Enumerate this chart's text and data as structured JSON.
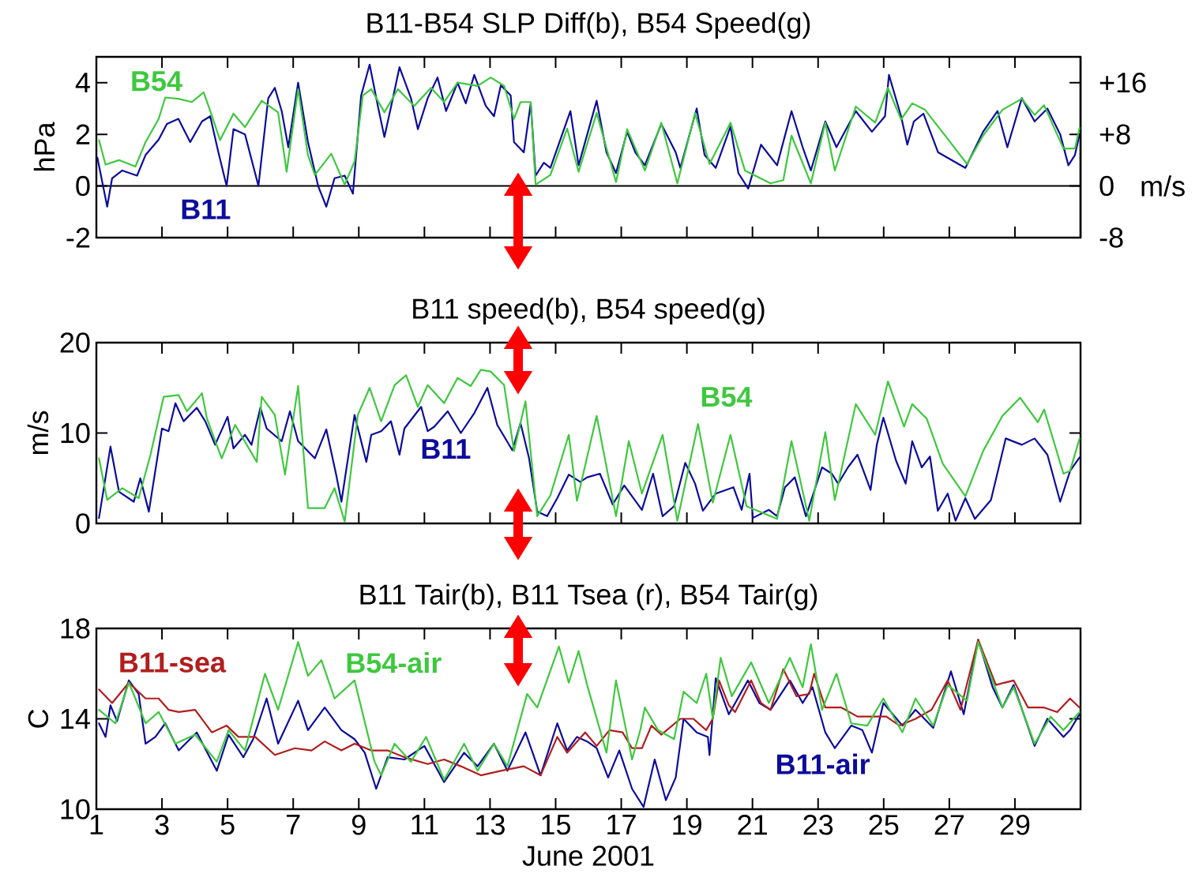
{
  "chart_data": [
    {
      "type": "line",
      "title": "B11-B54 SLP Diff(b), B54 Speed(g)",
      "ylabel": "hPa",
      "y2label": "m/s",
      "xlim": [
        1,
        31
      ],
      "xticks": [
        1,
        3,
        5,
        7,
        9,
        11,
        13,
        15,
        17,
        19,
        21,
        23,
        25,
        27,
        29
      ],
      "ylim": [
        -2,
        5
      ],
      "yticks": [
        -2,
        0,
        2,
        4
      ],
      "y2lim": [
        -8,
        20
      ],
      "y2ticks": [
        {
          "value": -8,
          "label": "-8"
        },
        {
          "value": 0,
          "label": "0"
        },
        {
          "value": 8,
          "label": "+8"
        },
        {
          "value": 16,
          "label": "+16"
        }
      ],
      "tick_labels": "y",
      "ref_lines": [
        {
          "axis": "y",
          "value": 0,
          "color": "#000000"
        }
      ],
      "series": [
        {
          "name": "B11",
          "color": "#0c0c9c",
          "x": [
            1.03,
            1.33,
            1.48,
            1.79,
            2.24,
            2.5,
            2.9,
            3.15,
            3.5,
            3.86,
            4.22,
            4.47,
            4.72,
            4.97,
            5.18,
            5.53,
            5.94,
            6.24,
            6.44,
            6.65,
            6.85,
            7.15,
            7.45,
            7.76,
            8.01,
            8.26,
            8.57,
            8.82,
            9.07,
            9.33,
            9.58,
            9.78,
            10.04,
            10.24,
            10.59,
            10.8,
            11.1,
            11.4,
            11.66,
            12.01,
            12.26,
            12.52,
            12.87,
            13.12,
            13.33,
            13.63,
            13.73,
            14.03,
            14.24,
            14.39,
            14.64,
            14.84,
            15.45,
            15.7,
            16.25,
            16.55,
            16.84,
            17.18,
            17.43,
            17.72,
            18.22,
            18.66,
            18.8,
            19.3,
            19.54,
            19.88,
            20.33,
            20.57,
            20.87,
            21.26,
            21.75,
            22.19,
            22.53,
            22.78,
            23.22,
            23.56,
            24.15,
            24.64,
            25.04,
            25.16,
            25.53,
            25.72,
            25.92,
            26.21,
            26.66,
            27.49,
            28.03,
            28.47,
            28.77,
            29.21,
            29.6,
            29.99,
            30.38,
            30.63,
            30.83,
            30.97
          ],
          "values": [
            1.1,
            -0.8,
            0.3,
            0.6,
            0.4,
            1.2,
            1.8,
            2.4,
            2.6,
            1.7,
            2.5,
            2.7,
            1.3,
            0.0,
            2.2,
            2.0,
            0.0,
            3.4,
            3.8,
            2.9,
            1.5,
            4.0,
            1.7,
            0.0,
            -0.8,
            0.3,
            0.4,
            -0.3,
            3.5,
            4.7,
            3.1,
            1.9,
            3.4,
            4.6,
            3.4,
            2.2,
            3.4,
            4.2,
            2.9,
            4.0,
            3.2,
            4.3,
            3.1,
            2.7,
            3.9,
            3.5,
            1.7,
            1.3,
            3.2,
            0.4,
            0.9,
            0.7,
            2.9,
            0.8,
            3.3,
            1.3,
            0.5,
            2.1,
            1.3,
            0.8,
            2.4,
            1.3,
            0.7,
            3.0,
            1.2,
            0.7,
            2.3,
            0.5,
            -0.1,
            1.6,
            0.8,
            2.9,
            1.5,
            0.6,
            2.5,
            1.5,
            2.9,
            2.1,
            2.7,
            4.3,
            2.7,
            1.6,
            2.5,
            2.8,
            1.3,
            0.7,
            2.1,
            2.9,
            1.5,
            3.4,
            2.5,
            3.0,
            2.0,
            0.8,
            1.2,
            2.0
          ]
        },
        {
          "name": "B54",
          "color": "#3ec83e",
          "axis": "y2",
          "x": [
            1.08,
            1.28,
            1.69,
            2.19,
            2.5,
            2.9,
            3.1,
            3.5,
            3.91,
            4.27,
            4.52,
            4.77,
            5.18,
            5.53,
            6.04,
            6.54,
            6.8,
            7.15,
            7.45,
            7.66,
            8.16,
            8.57,
            8.87,
            9.12,
            9.38,
            9.78,
            10.19,
            10.69,
            11.2,
            11.6,
            12.01,
            12.62,
            13.02,
            13.43,
            13.73,
            13.93,
            14.24,
            14.39,
            14.84,
            15.35,
            15.7,
            16.25,
            16.84,
            17.18,
            17.72,
            18.22,
            18.71,
            19.25,
            19.69,
            20.33,
            20.77,
            21.55,
            21.94,
            22.19,
            22.78,
            23.22,
            23.51,
            24.15,
            24.74,
            25.13,
            25.53,
            25.87,
            26.26,
            26.95,
            27.54,
            28.03,
            28.62,
            29.21,
            29.6,
            29.89,
            30.48,
            30.83,
            30.97
          ],
          "values": [
            7.1,
            3.3,
            4.0,
            3.0,
            6.8,
            10.4,
            13.7,
            13.5,
            13.0,
            14.5,
            10.9,
            7.1,
            11.2,
            9.1,
            13.2,
            11.4,
            2.2,
            15.0,
            4.8,
            1.7,
            5.0,
            0.2,
            3.8,
            14.0,
            15.0,
            11.4,
            15.0,
            12.4,
            15.2,
            13.0,
            16.0,
            15.5,
            16.8,
            15.5,
            10.4,
            13.0,
            13.0,
            0.2,
            1.7,
            8.9,
            2.2,
            11.3,
            0.6,
            8.8,
            2.4,
            9.8,
            0.4,
            11.3,
            3.4,
            9.8,
            2.4,
            0.4,
            0.9,
            7.8,
            0.4,
            9.8,
            2.4,
            12.3,
            9.8,
            15.2,
            10.3,
            12.8,
            11.8,
            7.3,
            3.4,
            7.8,
            11.8,
            13.5,
            11.0,
            12.5,
            5.8,
            5.8,
            9.0
          ]
        }
      ]
    },
    {
      "type": "line",
      "title": "B11 speed(b), B54 speed(g)",
      "ylabel": "m/s",
      "xlim": [
        1,
        31
      ],
      "xticks": [
        1,
        3,
        5,
        7,
        9,
        11,
        13,
        15,
        17,
        19,
        21,
        23,
        25,
        27,
        29
      ],
      "ylim": [
        0,
        20
      ],
      "yticks": [
        0,
        10,
        20
      ],
      "tick_labels": "y",
      "series": [
        {
          "name": "B11",
          "color": "#0c0c9c",
          "x": [
            1.08,
            1.43,
            1.69,
            2.14,
            2.34,
            2.6,
            3.0,
            3.2,
            3.41,
            3.66,
            4.06,
            4.32,
            4.62,
            5.0,
            5.18,
            5.53,
            5.73,
            6.0,
            6.19,
            6.65,
            6.9,
            7.15,
            7.66,
            8.01,
            8.31,
            8.47,
            8.87,
            9.23,
            9.38,
            9.68,
            9.98,
            10.24,
            10.39,
            10.9,
            11.1,
            11.3,
            11.71,
            12.11,
            12.52,
            12.92,
            13.22,
            13.68,
            13.93,
            14.19,
            14.44,
            14.74,
            15.05,
            15.4,
            15.75,
            15.96,
            16.35,
            16.74,
            17.09,
            17.63,
            17.97,
            18.26,
            18.61,
            18.95,
            19.25,
            19.49,
            19.88,
            20.42,
            20.67,
            20.91,
            21.01,
            21.5,
            21.75,
            21.99,
            22.29,
            22.63,
            23.12,
            23.42,
            23.61,
            23.91,
            24.2,
            24.6,
            24.79,
            24.99,
            25.38,
            25.67,
            25.87,
            26.16,
            26.41,
            26.65,
            26.95,
            27.19,
            27.49,
            27.78,
            28.27,
            28.72,
            29.21,
            29.6,
            29.99,
            30.38,
            30.68,
            30.97
          ],
          "values": [
            0.6,
            8.5,
            3.5,
            2.4,
            5.0,
            1.3,
            10.5,
            10.2,
            13.3,
            11.3,
            12.8,
            11.3,
            8.7,
            11.8,
            8.3,
            9.8,
            8.7,
            12.8,
            10.5,
            9.1,
            12.4,
            9.1,
            7.2,
            10.4,
            5.4,
            2.4,
            12.0,
            6.8,
            9.8,
            10.2,
            11.3,
            7.6,
            10.5,
            12.9,
            10.2,
            10.7,
            12.4,
            10.0,
            12.2,
            15.0,
            10.9,
            8.1,
            11.1,
            7.2,
            1.3,
            0.8,
            2.8,
            5.4,
            4.6,
            5.1,
            5.5,
            2.1,
            4.2,
            1.5,
            5.5,
            0.8,
            1.9,
            6.7,
            4.4,
            1.4,
            3.3,
            4.0,
            1.5,
            5.5,
            0.6,
            1.5,
            0.8,
            4.0,
            5.1,
            0.8,
            6.2,
            5.5,
            4.4,
            6.2,
            7.6,
            3.7,
            8.7,
            11.7,
            6.9,
            4.4,
            9.1,
            6.2,
            7.4,
            1.4,
            3.3,
            0.3,
            2.8,
            0.5,
            2.6,
            9.4,
            8.7,
            9.4,
            7.6,
            2.4,
            5.8,
            7.3
          ]
        },
        {
          "name": "B54",
          "color": "#3ec83e",
          "x": [
            1.08,
            1.33,
            1.79,
            2.29,
            2.65,
            3.05,
            3.51,
            3.76,
            4.22,
            4.37,
            4.82,
            5.23,
            5.89,
            6.04,
            6.44,
            6.75,
            7.15,
            7.45,
            7.96,
            8.26,
            8.57,
            8.97,
            9.33,
            9.68,
            10.09,
            10.44,
            10.8,
            11.1,
            11.6,
            12.01,
            12.41,
            12.72,
            13.02,
            13.43,
            13.73,
            14.08,
            14.44,
            14.84,
            15.4,
            15.65,
            16.25,
            16.84,
            17.23,
            17.63,
            18.26,
            18.71,
            19.34,
            19.79,
            20.33,
            20.82,
            21.75,
            22.19,
            22.73,
            23.22,
            23.51,
            24.15,
            24.74,
            25.13,
            25.62,
            25.87,
            26.31,
            26.8,
            27.49,
            28.03,
            28.62,
            29.16,
            29.7,
            29.89,
            30.48,
            30.68,
            30.97
          ],
          "values": [
            7.2,
            2.6,
            3.9,
            2.8,
            7.6,
            14.0,
            14.2,
            12.4,
            14.4,
            11.6,
            7.2,
            10.9,
            6.8,
            14.0,
            12.0,
            5.4,
            15.2,
            1.7,
            1.7,
            3.9,
            0.2,
            12.0,
            15.0,
            11.3,
            15.3,
            16.4,
            12.9,
            15.3,
            13.3,
            16.1,
            15.2,
            17.0,
            16.8,
            15.3,
            8.0,
            13.5,
            0.8,
            3.1,
            9.8,
            2.5,
            11.9,
            0.8,
            9.1,
            3.3,
            9.8,
            0.3,
            11.0,
            2.3,
            9.8,
            1.9,
            0.5,
            9.1,
            0.3,
            10.1,
            2.6,
            13.2,
            9.8,
            15.7,
            10.7,
            13.2,
            11.6,
            6.6,
            3.0,
            8.0,
            11.9,
            13.9,
            11.2,
            12.6,
            5.5,
            5.8,
            9.4
          ]
        }
      ]
    },
    {
      "type": "line",
      "title": "B11 Tair(b), B11 Tsea (r), B54 Tair(g)",
      "xlabel": "June 2001",
      "ylabel": "C",
      "xlim": [
        1,
        31
      ],
      "xticks": [
        1,
        3,
        5,
        7,
        9,
        11,
        13,
        15,
        17,
        19,
        21,
        23,
        25,
        27,
        29
      ],
      "ylim": [
        10,
        18
      ],
      "yticks": [
        10,
        14,
        18
      ],
      "series": [
        {
          "name": "B11-air",
          "color": "#0c0c9c",
          "x": [
            1.08,
            1.28,
            1.43,
            1.63,
            1.99,
            2.29,
            2.5,
            2.8,
            3.1,
            3.51,
            4.06,
            4.67,
            5.03,
            5.48,
            5.78,
            6.19,
            6.54,
            7.15,
            7.45,
            7.96,
            8.47,
            8.87,
            9.18,
            9.53,
            9.88,
            10.39,
            11.0,
            11.6,
            12.21,
            12.62,
            13.12,
            13.53,
            14.08,
            14.54,
            15.05,
            15.35,
            15.65,
            15.96,
            16.25,
            16.6,
            16.94,
            17.33,
            17.68,
            18.02,
            18.36,
            18.66,
            18.9,
            19.3,
            19.64,
            19.69,
            19.88,
            20.28,
            20.86,
            21.21,
            21.55,
            22.14,
            22.53,
            22.83,
            23.22,
            23.51,
            24.01,
            24.35,
            24.64,
            24.99,
            25.57,
            25.97,
            26.51,
            27.05,
            27.44,
            27.88,
            28.32,
            28.62,
            28.96,
            29.6,
            29.99,
            30.48,
            30.68,
            30.97
          ],
          "values": [
            13.8,
            13.2,
            14.6,
            13.9,
            15.7,
            15.1,
            12.9,
            13.2,
            13.8,
            12.6,
            13.4,
            11.7,
            13.3,
            12.3,
            13.1,
            14.9,
            12.9,
            14.8,
            13.5,
            14.5,
            13.5,
            13.1,
            12.5,
            10.9,
            12.3,
            12.2,
            12.8,
            11.2,
            12.5,
            11.9,
            12.9,
            11.7,
            13.4,
            11.5,
            13.8,
            12.6,
            13.2,
            13.0,
            12.7,
            11.4,
            12.6,
            10.9,
            10.1,
            12.2,
            10.4,
            11.4,
            14.0,
            13.4,
            13.2,
            12.4,
            15.8,
            14.2,
            15.7,
            14.7,
            14.4,
            15.7,
            14.7,
            15.4,
            13.4,
            12.7,
            13.7,
            13.5,
            12.5,
            14.7,
            13.7,
            14.4,
            13.6,
            16.1,
            14.2,
            17.5,
            15.4,
            14.5,
            15.5,
            12.8,
            14.0,
            13.2,
            13.5,
            14.2
          ]
        },
        {
          "name": "B11-sea",
          "color": "#b01e1e",
          "x": [
            1.08,
            1.48,
            1.99,
            2.5,
            2.9,
            3.2,
            3.51,
            4.01,
            4.52,
            4.97,
            5.33,
            5.84,
            6.44,
            7.05,
            7.56,
            7.96,
            8.47,
            8.87,
            9.38,
            9.88,
            10.39,
            11.1,
            11.6,
            12.11,
            12.72,
            13.33,
            14.03,
            14.54,
            15.05,
            15.35,
            15.9,
            16.25,
            16.64,
            17.04,
            17.33,
            17.63,
            17.92,
            18.22,
            18.8,
            19.2,
            19.59,
            19.79,
            19.98,
            20.28,
            20.47,
            20.96,
            21.26,
            21.55,
            21.94,
            22.34,
            22.73,
            22.88,
            23.22,
            23.71,
            24.2,
            24.69,
            25.08,
            25.48,
            25.97,
            26.46,
            26.95,
            27.34,
            27.88,
            28.42,
            28.96,
            29.4,
            29.89,
            30.29,
            30.68,
            30.97
          ],
          "values": [
            15.3,
            14.7,
            15.6,
            14.9,
            14.9,
            14.4,
            14.3,
            14.4,
            13.4,
            13.7,
            13.2,
            13.2,
            12.4,
            12.7,
            12.6,
            13.0,
            12.6,
            12.9,
            12.6,
            12.6,
            12.3,
            12.0,
            12.2,
            11.9,
            11.5,
            11.7,
            11.9,
            11.5,
            13.2,
            12.5,
            13.4,
            12.8,
            13.5,
            13.4,
            12.7,
            12.7,
            13.7,
            13.3,
            14.0,
            14.0,
            13.5,
            14.0,
            15.7,
            14.6,
            14.3,
            15.7,
            14.7,
            14.4,
            16.2,
            15.0,
            15.1,
            16.0,
            14.5,
            14.5,
            14.1,
            14.1,
            14.1,
            13.7,
            14.0,
            14.4,
            15.7,
            14.4,
            17.5,
            15.5,
            15.7,
            14.5,
            14.5,
            14.3,
            14.9,
            14.5
          ]
        },
        {
          "name": "B54-air",
          "color": "#3ec83e",
          "x": [
            1.08,
            1.58,
            1.99,
            2.5,
            2.9,
            3.41,
            4.01,
            4.67,
            5.03,
            5.53,
            6.14,
            6.54,
            7.15,
            7.45,
            7.86,
            8.26,
            8.87,
            9.48,
            9.68,
            10.09,
            10.59,
            11.05,
            11.6,
            12.21,
            12.62,
            13.12,
            13.53,
            14.13,
            14.44,
            15.1,
            15.4,
            15.7,
            15.96,
            16.55,
            16.84,
            17.33,
            17.58,
            17.72,
            18.12,
            18.61,
            18.9,
            19.3,
            19.59,
            19.79,
            20.03,
            20.37,
            20.96,
            21.5,
            22.14,
            22.53,
            22.78,
            23.12,
            23.56,
            24.01,
            24.5,
            24.99,
            25.57,
            25.97,
            26.51,
            26.95,
            27.54,
            27.88,
            28.62,
            28.96,
            29.6,
            30.09,
            30.48,
            30.97
          ],
          "values": [
            14.4,
            13.8,
            15.6,
            13.8,
            14.3,
            12.9,
            13.3,
            12.1,
            13.5,
            12.6,
            16.0,
            14.4,
            17.4,
            15.9,
            16.6,
            14.9,
            15.7,
            12.1,
            11.5,
            12.9,
            12.1,
            13.2,
            11.3,
            12.9,
            11.7,
            12.9,
            11.9,
            15.1,
            14.5,
            17.2,
            15.6,
            17.0,
            15.5,
            12.5,
            15.7,
            12.2,
            13.5,
            14.5,
            13.5,
            13.1,
            15.2,
            14.7,
            16.0,
            14.0,
            16.7,
            15.0,
            16.5,
            14.7,
            16.7,
            15.4,
            17.3,
            14.4,
            16.0,
            13.8,
            13.7,
            14.9,
            13.4,
            14.9,
            13.7,
            15.5,
            14.8,
            17.4,
            14.5,
            15.4,
            12.9,
            14.1,
            13.5,
            14.3
          ]
        }
      ]
    }
  ]
}
